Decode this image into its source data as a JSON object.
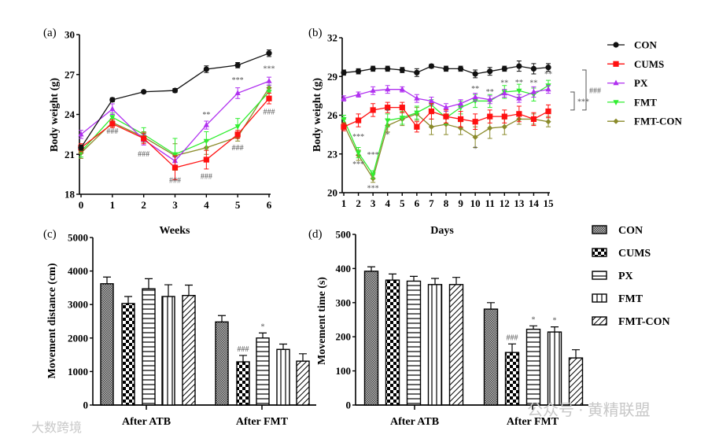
{
  "colors": {
    "CON": "#111111",
    "CUMS": "#ff1010",
    "PX": "#b030f0",
    "FMT": "#30ee30",
    "FMT-CON": "#8a8a2a"
  },
  "watermarks": {
    "left": "大数跨境",
    "right": "公众号 · 黄精联盟"
  },
  "chart_data": [
    {
      "id": "a",
      "type": "line",
      "panel_label": "(a)",
      "xlabel": "Weeks",
      "ylabel": "Body weight (g)",
      "xlim": [
        0,
        6
      ],
      "ylim": [
        18,
        30
      ],
      "xticks": [
        "0",
        "1",
        "2",
        "3",
        "4",
        "5",
        "6"
      ],
      "yticks": [
        "18",
        "21",
        "24",
        "27",
        "30"
      ],
      "x": [
        0,
        1,
        2,
        3,
        4,
        5,
        6
      ],
      "series": [
        {
          "name": "CON",
          "marker": "circle",
          "values": [
            21.5,
            25.1,
            25.7,
            25.8,
            27.4,
            27.7,
            28.6
          ],
          "err": [
            0.2,
            0.15,
            0.1,
            0.15,
            0.25,
            0.2,
            0.25
          ]
        },
        {
          "name": "CUMS",
          "marker": "square",
          "values": [
            21.5,
            23.3,
            22.2,
            20.0,
            20.6,
            22.5,
            25.2
          ],
          "err": [
            0.3,
            0.3,
            0.4,
            0.9,
            0.7,
            0.3,
            0.4
          ]
        },
        {
          "name": "PX",
          "marker": "triangle",
          "values": [
            22.5,
            24.4,
            22.1,
            20.5,
            23.2,
            25.6,
            26.5
          ],
          "err": [
            0.3,
            0.4,
            0.4,
            0.3,
            0.3,
            0.4,
            0.3
          ]
        },
        {
          "name": "FMT",
          "marker": "triangle-down",
          "values": [
            21.2,
            23.8,
            22.5,
            21.0,
            22.0,
            23.1,
            25.7
          ],
          "err": [
            0.4,
            0.3,
            0.5,
            1.2,
            0.7,
            0.6,
            0.5
          ]
        },
        {
          "name": "FMT-CON",
          "marker": "diamond",
          "values": [
            21.1,
            23.4,
            22.3,
            20.9,
            21.5,
            22.3,
            26.0
          ],
          "err": [
            0.4,
            0.3,
            0.4,
            0.9,
            0.5,
            0.3,
            0.4
          ]
        }
      ],
      "annotations": [
        {
          "x": 1,
          "y": 22.55,
          "text": "###"
        },
        {
          "x": 2,
          "y": 20.85,
          "text": "###"
        },
        {
          "x": 3,
          "y": 18.85,
          "text": "###"
        },
        {
          "x": 4,
          "y": 19.15,
          "text": "###"
        },
        {
          "x": 5,
          "y": 21.3,
          "text": "###"
        },
        {
          "x": 6,
          "y": 24.0,
          "text": "###"
        },
        {
          "x": 4,
          "y": 23.8,
          "text": "**"
        },
        {
          "x": 5,
          "y": 26.4,
          "text": "***"
        },
        {
          "x": 6,
          "y": 27.25,
          "text": "***"
        }
      ]
    },
    {
      "id": "b",
      "type": "line",
      "panel_label": "(b)",
      "xlabel": "Days",
      "ylabel": "Body weight (g)",
      "xlim": [
        1,
        15
      ],
      "ylim": [
        20,
        32
      ],
      "xticks": [
        "1",
        "2",
        "3",
        "4",
        "5",
        "6",
        "7",
        "8",
        "9",
        "10",
        "11",
        "12",
        "13",
        "14",
        "15"
      ],
      "yticks": [
        "20",
        "23",
        "26",
        "29",
        "32"
      ],
      "x": [
        1,
        2,
        3,
        4,
        5,
        6,
        7,
        8,
        9,
        10,
        11,
        12,
        13,
        14,
        15
      ],
      "series": [
        {
          "name": "CON",
          "marker": "circle",
          "values": [
            29.3,
            29.4,
            29.6,
            29.6,
            29.5,
            29.3,
            29.8,
            29.6,
            29.6,
            29.2,
            29.4,
            29.6,
            29.8,
            29.6,
            29.7
          ],
          "err": [
            0.2,
            0.2,
            0.2,
            0.2,
            0.2,
            0.3,
            0.15,
            0.2,
            0.2,
            0.3,
            0.3,
            0.2,
            0.4,
            0.4,
            0.3
          ]
        },
        {
          "name": "CUMS",
          "marker": "square",
          "values": [
            25.1,
            25.6,
            26.4,
            26.6,
            26.6,
            25.1,
            26.3,
            25.9,
            25.7,
            25.5,
            25.9,
            25.9,
            26.1,
            25.7,
            26.3
          ],
          "err": [
            0.3,
            0.5,
            0.5,
            0.4,
            0.4,
            0.4,
            0.6,
            0.5,
            0.6,
            0.6,
            0.5,
            0.5,
            0.6,
            0.5,
            0.5
          ]
        },
        {
          "name": "PX",
          "marker": "triangle",
          "values": [
            27.3,
            27.6,
            27.9,
            28.0,
            28.0,
            27.3,
            27.1,
            26.6,
            26.9,
            27.4,
            27.2,
            27.7,
            27.3,
            27.8,
            28.0
          ],
          "err": [
            0.2,
            0.2,
            0.3,
            0.3,
            0.2,
            0.3,
            0.3,
            0.3,
            0.3,
            0.3,
            0.3,
            0.3,
            0.3,
            0.4,
            0.3
          ]
        },
        {
          "name": "FMT",
          "marker": "triangle-down",
          "values": [
            25.7,
            23.1,
            21.4,
            25.6,
            25.8,
            26.2,
            26.8,
            25.8,
            26.6,
            27.1,
            27.1,
            27.8,
            27.9,
            27.6,
            28.3
          ],
          "err": [
            0.3,
            0.4,
            0.3,
            0.5,
            0.5,
            0.5,
            0.4,
            0.5,
            0.5,
            0.5,
            0.5,
            0.5,
            0.5,
            0.5,
            0.4
          ]
        },
        {
          "name": "FMT-CON",
          "marker": "diamond",
          "values": [
            25.3,
            22.9,
            21.1,
            25.2,
            25.7,
            26.1,
            25.1,
            25.3,
            25.0,
            24.3,
            25.0,
            25.1,
            25.7,
            25.7,
            25.5
          ],
          "err": [
            0.4,
            0.4,
            0.3,
            0.5,
            0.5,
            0.5,
            0.6,
            0.8,
            0.5,
            0.8,
            0.8,
            0.6,
            0.4,
            0.4,
            0.4
          ]
        }
      ],
      "annotations": [
        {
          "x": 2,
          "y": 24.15,
          "text": "***"
        },
        {
          "x": 2,
          "y": 22.0,
          "text": "***"
        },
        {
          "x": 3,
          "y": 22.75,
          "text": "***"
        },
        {
          "x": 3,
          "y": 20.15,
          "text": "***"
        },
        {
          "x": 4,
          "y": 26.1,
          "text": "*"
        },
        {
          "x": 4,
          "y": 24.3,
          "text": "*"
        },
        {
          "x": 10,
          "y": 23.2,
          "text": "*"
        },
        {
          "x": 10,
          "y": 27.85,
          "text": "**"
        },
        {
          "x": 11,
          "y": 27.6,
          "text": "**"
        },
        {
          "x": 12,
          "y": 28.3,
          "text": "**"
        },
        {
          "x": 13,
          "y": 28.35,
          "text": "**"
        },
        {
          "x": 14,
          "y": 28.3,
          "text": "**"
        },
        {
          "x": 15,
          "y": 29.0,
          "text": "**"
        }
      ],
      "brackets": [
        {
          "from": 27.8,
          "to": 26.4,
          "text": "***"
        },
        {
          "from": 29.5,
          "to": 26.4,
          "text": "###"
        }
      ],
      "legend": {
        "placement": "right",
        "items": [
          "CON",
          "CUMS",
          "PX",
          "FMT",
          "FMT-CON"
        ]
      }
    },
    {
      "id": "c",
      "type": "bar",
      "panel_label": "(c)",
      "xlabel": "",
      "ylabel": "Movement distance (cm)",
      "ylim": [
        0,
        5000
      ],
      "yticks": [
        "0",
        "1000",
        "2000",
        "3000",
        "4000",
        "5000"
      ],
      "categories": [
        "After ATB",
        "After FMT"
      ],
      "series": [
        {
          "name": "CON",
          "pattern": "crosshatch",
          "values": [
            3620,
            2480
          ],
          "err": [
            200,
            190
          ]
        },
        {
          "name": "CUMS",
          "pattern": "checker",
          "values": [
            3030,
            1290
          ],
          "err": [
            210,
            190
          ]
        },
        {
          "name": "PX",
          "pattern": "hlines",
          "values": [
            3470,
            2000
          ],
          "err": [
            300,
            150
          ]
        },
        {
          "name": "FMT",
          "pattern": "vlines",
          "values": [
            3240,
            1660
          ],
          "err": [
            350,
            160
          ]
        },
        {
          "name": "FMT-CON",
          "pattern": "diag",
          "values": [
            3270,
            1310
          ],
          "err": [
            310,
            220
          ]
        }
      ],
      "annotations": [
        {
          "category": 1,
          "series": 1,
          "text": "###"
        },
        {
          "category": 1,
          "series": 2,
          "text": "*"
        }
      ]
    },
    {
      "id": "d",
      "type": "bar",
      "panel_label": "(d)",
      "xlabel": "",
      "ylabel": "Movement time (s)",
      "ylim": [
        0,
        500
      ],
      "yticks": [
        "0",
        "100",
        "200",
        "300",
        "400",
        "500"
      ],
      "categories": [
        "After ATB",
        "After FMT"
      ],
      "series": [
        {
          "name": "CON",
          "pattern": "crosshatch",
          "values": [
            392,
            281
          ],
          "err": [
            13,
            19
          ]
        },
        {
          "name": "CUMS",
          "pattern": "checker",
          "values": [
            366,
            154
          ],
          "err": [
            18,
            25
          ]
        },
        {
          "name": "PX",
          "pattern": "hlines",
          "values": [
            363,
            222
          ],
          "err": [
            14,
            10
          ]
        },
        {
          "name": "FMT",
          "pattern": "vlines",
          "values": [
            353,
            214
          ],
          "err": [
            18,
            15
          ]
        },
        {
          "name": "FMT-CON",
          "pattern": "diag",
          "values": [
            353,
            138
          ],
          "err": [
            21,
            24
          ]
        }
      ],
      "annotations": [
        {
          "category": 1,
          "series": 1,
          "text": "###"
        },
        {
          "category": 1,
          "series": 2,
          "text": "*"
        },
        {
          "category": 1,
          "series": 3,
          "text": "*"
        }
      ],
      "legend": {
        "placement": "right",
        "items": [
          "CON",
          "CUMS",
          "PX",
          "FMT",
          "FMT-CON"
        ]
      }
    }
  ]
}
